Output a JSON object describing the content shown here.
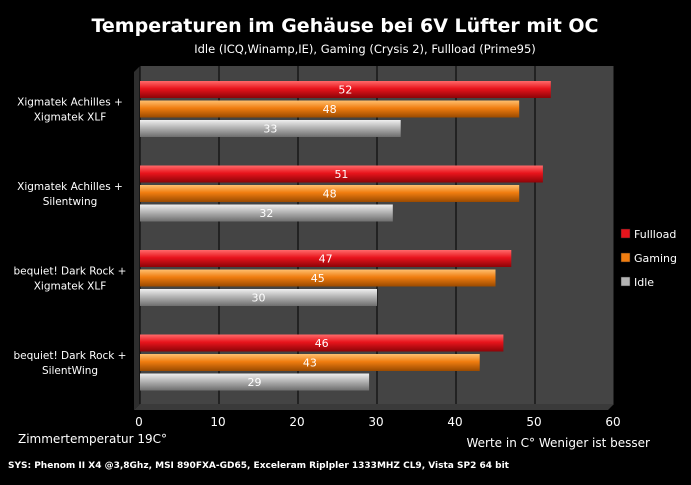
{
  "chart_data": {
    "type": "bar",
    "orientation": "horizontal",
    "title": "Temperaturen im Gehäuse bei 6V Lüfter mit OC",
    "subtitle": "Idle (ICQ,Winamp,IE), Gaming (Crysis 2), Fullload (Prime95)",
    "categories": [
      [
        "Xigmatek Achilles +",
        "Xigmatek XLF"
      ],
      [
        "Xigmatek Achilles +",
        "Silentwing"
      ],
      [
        "bequiet! Dark Rock +",
        "Xigmatek XLF"
      ],
      [
        "bequiet! Dark Rock +",
        "SilentWing"
      ]
    ],
    "series": [
      {
        "name": "Fullload",
        "color": "#e8141c",
        "values": [
          52,
          51,
          47,
          46
        ]
      },
      {
        "name": "Gaming",
        "color": "#f07d10",
        "values": [
          48,
          48,
          45,
          43
        ]
      },
      {
        "name": "Idle",
        "color": "#b4b4b4",
        "values": [
          33,
          32,
          30,
          29
        ]
      }
    ],
    "xlim": [
      0,
      60
    ],
    "xticks": [
      "0",
      "10",
      "20",
      "30",
      "40",
      "50",
      "60"
    ],
    "grid": true,
    "legend": "right",
    "plot_background": "#444444",
    "annotations": {
      "left_note": "Zimmertemperatur 19C°",
      "right_note": "Werte in C° Weniger ist besser",
      "footer": "SYS: Phenom II X4 @3,8Ghz, MSI 890FXA-GD65, Exceleram Riplpler 1333MHZ CL9, Vista SP2 64 bit"
    }
  }
}
